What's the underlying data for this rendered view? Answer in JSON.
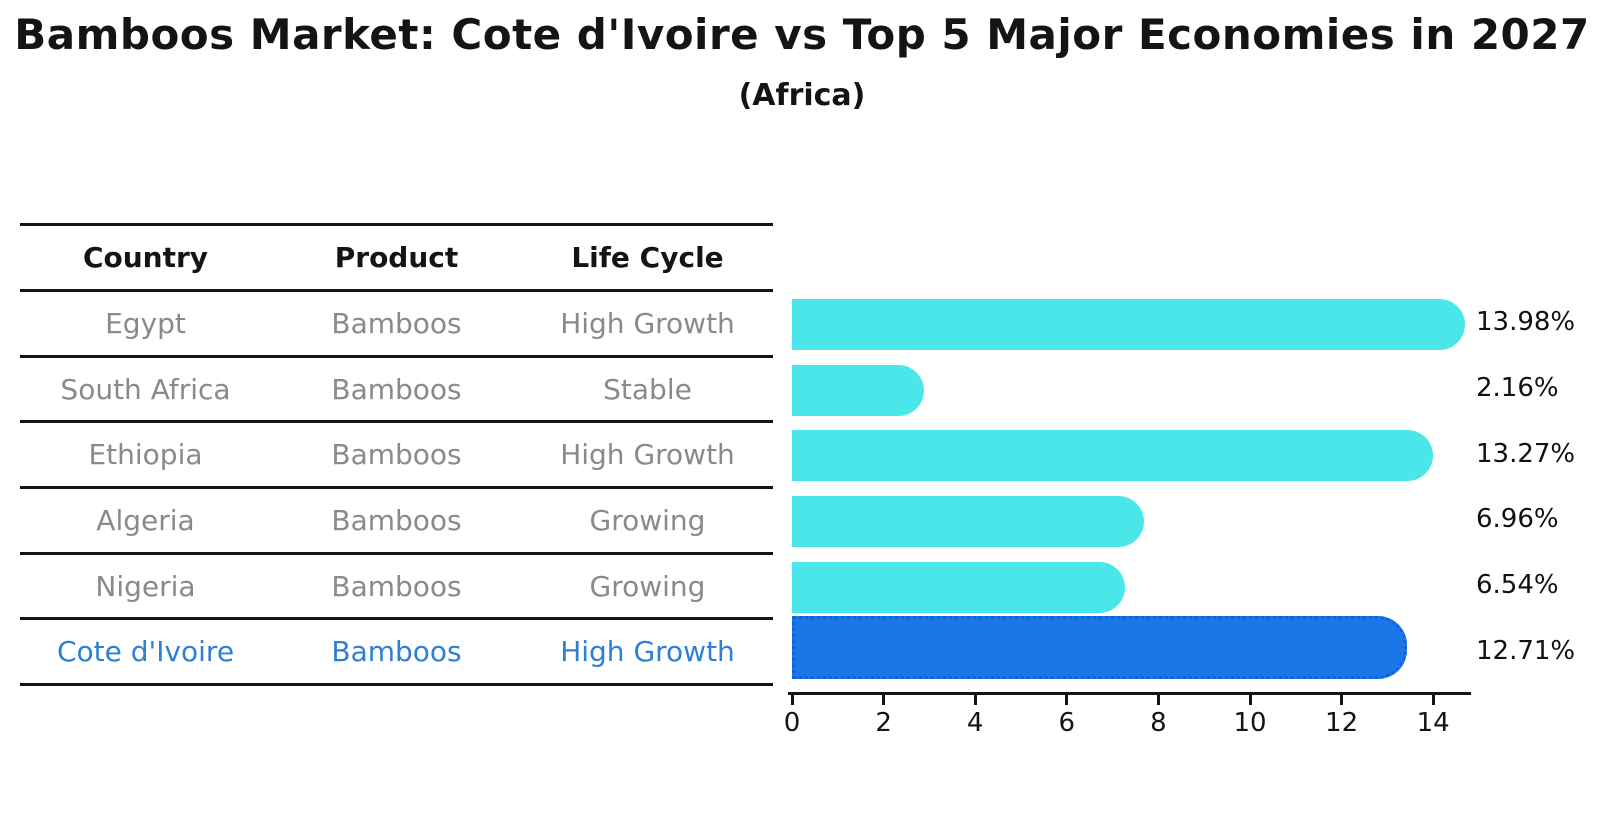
{
  "header": {
    "title": "Bamboos Market: Cote d'Ivoire vs Top 5 Major Economies in 2027",
    "subtitle": "(Africa)"
  },
  "table": {
    "columns": [
      "Country",
      "Product",
      "Life Cycle"
    ],
    "rows": [
      {
        "country": "Egypt",
        "product": "Bamboos",
        "life_cycle": "High Growth"
      },
      {
        "country": "South Africa",
        "product": "Bamboos",
        "life_cycle": "Stable"
      },
      {
        "country": "Ethiopia",
        "product": "Bamboos",
        "life_cycle": "High Growth"
      },
      {
        "country": "Algeria",
        "product": "Bamboos",
        "life_cycle": "Growing"
      },
      {
        "country": "Nigeria",
        "product": "Bamboos",
        "life_cycle": "Growing"
      },
      {
        "country": "Cote d'Ivoire",
        "product": "Bamboos",
        "life_cycle": "High Growth"
      }
    ],
    "highlight_row": "Cote d'Ivoire"
  },
  "chart_data": {
    "type": "bar",
    "orientation": "horizontal",
    "title": "Bamboos Market: Cote d'Ivoire vs Top 5 Major Economies in 2027",
    "subtitle": "(Africa)",
    "categories": [
      "Egypt",
      "South Africa",
      "Ethiopia",
      "Algeria",
      "Nigeria",
      "Cote d'Ivoire"
    ],
    "values": [
      13.98,
      2.16,
      13.27,
      6.96,
      6.54,
      12.71
    ],
    "labels": [
      "13.98%",
      "2.16%",
      "13.27%",
      "6.96%",
      "6.54%",
      "12.71%"
    ],
    "xticks": [
      0,
      2,
      4,
      6,
      8,
      10,
      12,
      14
    ],
    "xlim": [
      0,
      14.8
    ],
    "grid": false,
    "legend": "none",
    "highlight_index": 5,
    "colors": {
      "bar": "#4be6ea",
      "highlight": "#1b76e8",
      "highlight_border": "#0f62d6",
      "value_label": "#111111",
      "row_text": "#8a8a8a",
      "highlight_text": "#2e7fd6",
      "axis": "#141414"
    }
  }
}
